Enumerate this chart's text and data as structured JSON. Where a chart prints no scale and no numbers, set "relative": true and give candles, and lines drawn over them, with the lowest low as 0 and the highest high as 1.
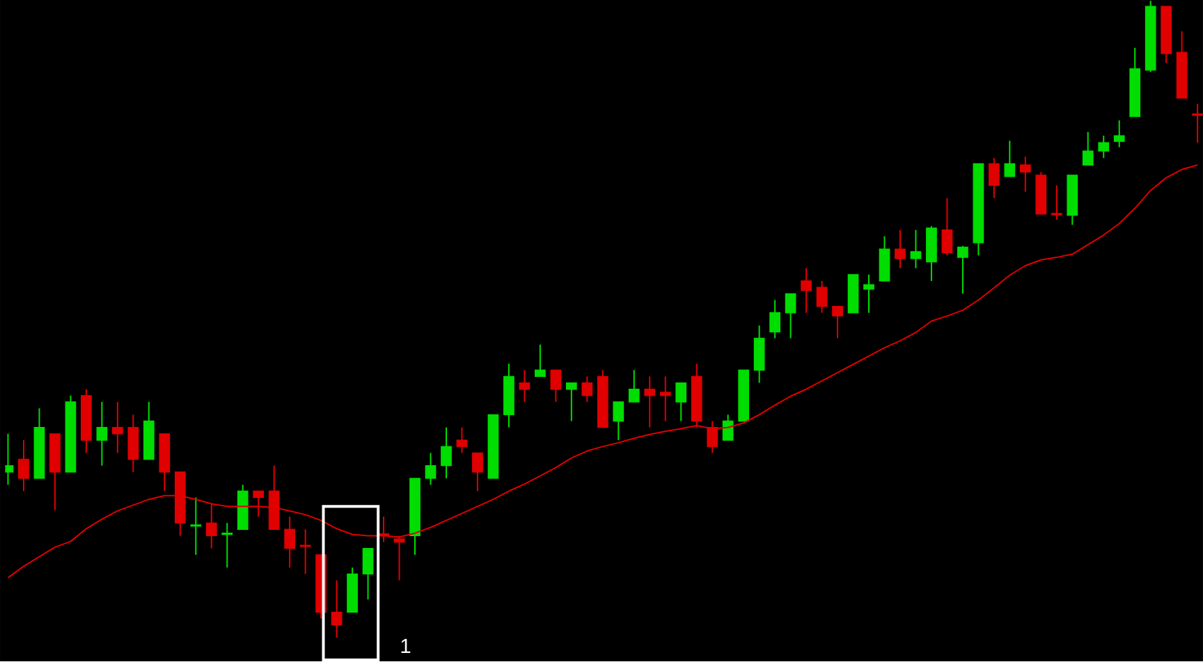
{
  "chart_data": {
    "type": "candlestick",
    "relative": true,
    "categories": [
      null,
      null,
      null,
      null,
      null,
      null,
      null,
      null,
      null,
      null,
      null,
      null,
      null,
      null,
      null,
      null,
      null,
      null,
      null,
      null,
      null,
      null,
      null,
      null,
      null,
      null,
      null,
      null,
      null,
      null,
      null,
      null,
      null,
      null,
      null,
      null,
      null,
      null,
      null,
      null,
      null,
      null,
      null,
      null,
      null,
      null,
      null,
      null,
      null,
      null,
      null,
      null,
      null,
      null,
      null,
      null,
      null,
      null,
      null,
      null,
      null,
      null,
      null,
      null,
      null,
      null,
      null,
      null,
      null,
      null,
      null,
      null,
      null,
      null,
      null,
      null,
      null
    ],
    "ohlc": [
      [
        0.26,
        0.32,
        0.24,
        0.27
      ],
      [
        0.28,
        0.31,
        0.23,
        0.25
      ],
      [
        0.25,
        0.36,
        0.25,
        0.33
      ],
      [
        0.32,
        0.32,
        0.2,
        0.26
      ],
      [
        0.26,
        0.38,
        0.26,
        0.37
      ],
      [
        0.38,
        0.39,
        0.29,
        0.31
      ],
      [
        0.31,
        0.37,
        0.27,
        0.33
      ],
      [
        0.33,
        0.37,
        0.29,
        0.32
      ],
      [
        0.33,
        0.35,
        0.26,
        0.28
      ],
      [
        0.28,
        0.37,
        0.28,
        0.34
      ],
      [
        0.32,
        0.32,
        0.23,
        0.26
      ],
      [
        0.26,
        0.26,
        0.16,
        0.18
      ],
      [
        0.175,
        0.22,
        0.13,
        0.177
      ],
      [
        0.18,
        0.21,
        0.14,
        0.16
      ],
      [
        0.162,
        0.18,
        0.11,
        0.164
      ],
      [
        0.17,
        0.24,
        0.17,
        0.23
      ],
      [
        0.23,
        0.23,
        0.19,
        0.22
      ],
      [
        0.23,
        0.27,
        0.17,
        0.17
      ],
      [
        0.17,
        0.19,
        0.11,
        0.14
      ],
      [
        0.145,
        0.17,
        0.1,
        0.143
      ],
      [
        0.13,
        0.13,
        0.03,
        0.04
      ],
      [
        0.04,
        0.09,
        0,
        0.02
      ],
      [
        0.04,
        0.11,
        0.04,
        0.1
      ],
      [
        0.1,
        0.14,
        0.06,
        0.14
      ],
      [
        0.163,
        0.19,
        0.15,
        0.161
      ],
      [
        0.155,
        0.16,
        0.09,
        0.15
      ],
      [
        0.16,
        0.25,
        0.13,
        0.25
      ],
      [
        0.25,
        0.29,
        0.24,
        0.27
      ],
      [
        0.27,
        0.33,
        0.25,
        0.3
      ],
      [
        0.31,
        0.33,
        0.29,
        0.3
      ],
      [
        0.29,
        0.29,
        0.23,
        0.26
      ],
      [
        0.25,
        0.35,
        0.25,
        0.35
      ],
      [
        0.35,
        0.43,
        0.33,
        0.41
      ],
      [
        0.4,
        0.42,
        0.37,
        0.39
      ],
      [
        0.41,
        0.46,
        0.41,
        0.42
      ],
      [
        0.42,
        0.42,
        0.37,
        0.39
      ],
      [
        0.39,
        0.4,
        0.34,
        0.4
      ],
      [
        0.4,
        0.41,
        0.37,
        0.38
      ],
      [
        0.41,
        0.42,
        0.33,
        0.33
      ],
      [
        0.34,
        0.37,
        0.31,
        0.37
      ],
      [
        0.37,
        0.42,
        0.37,
        0.39
      ],
      [
        0.39,
        0.41,
        0.33,
        0.38
      ],
      [
        0.385,
        0.41,
        0.34,
        0.38
      ],
      [
        0.37,
        0.4,
        0.34,
        0.4
      ],
      [
        0.41,
        0.43,
        0.33,
        0.34
      ],
      [
        0.33,
        0.34,
        0.29,
        0.3
      ],
      [
        0.31,
        0.35,
        0.31,
        0.34
      ],
      [
        0.34,
        0.42,
        0.34,
        0.42
      ],
      [
        0.42,
        0.49,
        0.4,
        0.47
      ],
      [
        0.48,
        0.53,
        0.47,
        0.51
      ],
      [
        0.51,
        0.54,
        0.47,
        0.54
      ],
      [
        0.56,
        0.58,
        0.51,
        0.545
      ],
      [
        0.55,
        0.56,
        0.51,
        0.52
      ],
      [
        0.52,
        0.52,
        0.47,
        0.505
      ],
      [
        0.51,
        0.57,
        0.51,
        0.57
      ],
      [
        0.547,
        0.57,
        0.51,
        0.554
      ],
      [
        0.56,
        0.63,
        0.56,
        0.61
      ],
      [
        0.61,
        0.64,
        0.58,
        0.595
      ],
      [
        0.595,
        0.64,
        0.58,
        0.606
      ],
      [
        0.59,
        0.646,
        0.56,
        0.643
      ],
      [
        0.64,
        0.69,
        0.6,
        0.604
      ],
      [
        0.597,
        0.615,
        0.54,
        0.613
      ],
      [
        0.62,
        0.744,
        0.6,
        0.744
      ],
      [
        0.744,
        0.753,
        0.69,
        0.71
      ],
      [
        0.724,
        0.78,
        0.724,
        0.744
      ],
      [
        0.742,
        0.755,
        0.7,
        0.731
      ],
      [
        0.726,
        0.731,
        0.665,
        0.665
      ],
      [
        0.666,
        0.71,
        0.656,
        0.664
      ],
      [
        0.663,
        0.726,
        0.648,
        0.726
      ],
      [
        0.742,
        0.794,
        0.742,
        0.764
      ],
      [
        0.764,
        0.788,
        0.753,
        0.777
      ],
      [
        0.779,
        0.812,
        0.77,
        0.788
      ],
      [
        0.818,
        0.926,
        0.818,
        0.893
      ],
      [
        0.891,
        1,
        0.888,
        0.991
      ],
      [
        0.991,
        0.991,
        0.902,
        0.917
      ],
      [
        0.919,
        0.952,
        0.847,
        0.847
      ],
      [
        0.822,
        0.838,
        0.777,
        0.82
      ]
    ],
    "colors": [
      "#00dd00",
      "#e00000",
      "#00dd00",
      "#e00000",
      "#00dd00",
      "#e00000",
      "#00dd00",
      "#e00000",
      "#e00000",
      "#00dd00",
      "#e00000",
      "#e00000",
      "#00dd00",
      "#e00000",
      "#00dd00",
      "#00dd00",
      "#e00000",
      "#e00000",
      "#e00000",
      "#e00000",
      "#e00000",
      "#e00000",
      "#00dd00",
      "#00dd00",
      "#e00000",
      "#e00000",
      "#00dd00",
      "#00dd00",
      "#00dd00",
      "#e00000",
      "#e00000",
      "#00dd00",
      "#00dd00",
      "#e00000",
      "#00dd00",
      "#e00000",
      "#00dd00",
      "#e00000",
      "#e00000",
      "#00dd00",
      "#00dd00",
      "#e00000",
      "#e00000",
      "#00dd00",
      "#e00000",
      "#e00000",
      "#00dd00",
      "#00dd00",
      "#00dd00",
      "#00dd00",
      "#00dd00",
      "#e00000",
      "#e00000",
      "#e00000",
      "#00dd00",
      "#00dd00",
      "#00dd00",
      "#e00000",
      "#00dd00",
      "#00dd00",
      "#e00000",
      "#00dd00",
      "#00dd00",
      "#e00000",
      "#00dd00",
      "#e00000",
      "#e00000",
      "#e00000",
      "#00dd00",
      "#00dd00",
      "#00dd00",
      "#00dd00",
      "#00dd00",
      "#00dd00",
      "#e00000",
      "#e00000",
      "#e00000"
    ],
    "series": [
      {
        "type": "line",
        "color": "#e00000",
        "values": [
          0.094,
          0.112,
          0.127,
          0.142,
          0.151,
          0.171,
          0.186,
          0.199,
          0.208,
          0.217,
          0.223,
          0.223,
          0.217,
          0.21,
          0.206,
          0.206,
          0.206,
          0.204,
          0.199,
          0.193,
          0.184,
          0.171,
          0.162,
          0.16,
          0.16,
          0.158,
          0.164,
          0.173,
          0.184,
          0.195,
          0.206,
          0.217,
          0.23,
          0.241,
          0.254,
          0.267,
          0.282,
          0.293,
          0.3,
          0.306,
          0.313,
          0.319,
          0.324,
          0.328,
          0.333,
          0.328,
          0.33,
          0.337,
          0.35,
          0.365,
          0.379,
          0.39,
          0.403,
          0.416,
          0.429,
          0.442,
          0.455,
          0.466,
          0.479,
          0.497,
          0.505,
          0.514,
          0.53,
          0.549,
          0.569,
          0.584,
          0.593,
          0.597,
          0.602,
          0.617,
          0.632,
          0.65,
          0.674,
          0.702,
          0.722,
          0.735,
          0.742
        ]
      }
    ],
    "annotations": [
      "1"
    ]
  }
}
